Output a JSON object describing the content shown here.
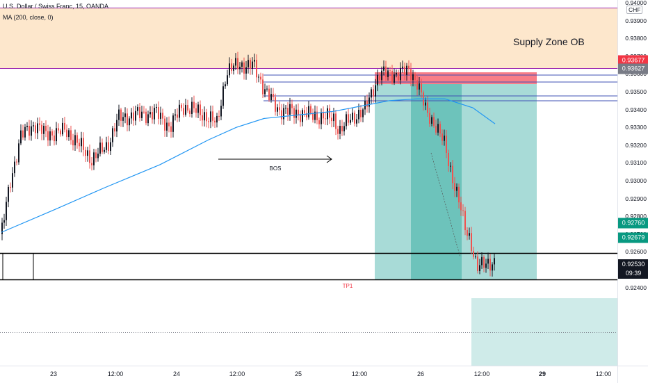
{
  "header": {
    "symbol_line": "U.S. Dollar / Swiss Franc, 15, OANDA",
    "indicator_line": "MA (200, close, 0)"
  },
  "price_axis": {
    "currency": "CHF",
    "ticks": [
      "0.94000",
      "0.93900",
      "0.93800",
      "0.93700",
      "0.93600",
      "0.93500",
      "0.93400",
      "0.93300",
      "0.93200",
      "0.93100",
      "0.93000",
      "0.92900",
      "0.92800",
      "0.92700",
      "0.92600",
      "0.92500",
      "0.92400"
    ],
    "tags": [
      {
        "value": "0.93677",
        "color": "#f23645"
      },
      {
        "value": "0.93627",
        "color": "#787b86"
      },
      {
        "value": "0.92760",
        "color": "#089981"
      },
      {
        "value": "0.92679",
        "color": "#089981"
      }
    ],
    "current_price": "0.92530",
    "countdown": "09:39"
  },
  "time_axis": {
    "labels": [
      {
        "text": "23",
        "bold": false
      },
      {
        "text": "12:00",
        "bold": false
      },
      {
        "text": "24",
        "bold": false
      },
      {
        "text": "12:00",
        "bold": false
      },
      {
        "text": "25",
        "bold": false
      },
      {
        "text": "12:00",
        "bold": false
      },
      {
        "text": "26",
        "bold": false
      },
      {
        "text": "12:00",
        "bold": false
      },
      {
        "text": "29",
        "bold": true
      },
      {
        "text": "12:00",
        "bold": false
      }
    ]
  },
  "annotations": {
    "supply_zone": "Supply Zone OB",
    "bos": "BOS",
    "tp1": "TP1"
  },
  "colors": {
    "supply_zone_fill": "#fde7cc",
    "supply_zone_border": "#9c27b0",
    "bull": "#131722",
    "bear": "#ef5350",
    "ma": "#2196f3",
    "target_fill": "#26a69a",
    "stop_fill": "#f7525f"
  }
}
